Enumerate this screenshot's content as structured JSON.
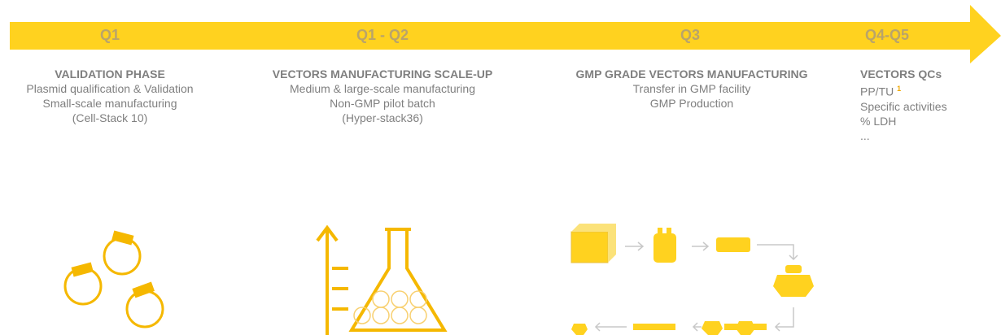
{
  "phases": [
    {
      "quarter": "Q1",
      "title": "VALIDATION PHASE",
      "items": [
        "Plasmid qualification & Validation",
        "Small-scale manufacturing",
        "(Cell-Stack 10)"
      ]
    },
    {
      "quarter": "Q1 - Q2",
      "title": "VECTORS MANUFACTURING SCALE-UP",
      "items": [
        "Medium & large-scale manufacturing",
        "Non-GMP pilot batch",
        "(Hyper-stack36)"
      ]
    },
    {
      "quarter": "Q3",
      "title": "GMP GRADE VECTORS MANUFACTURING",
      "items": [
        "Transfer in GMP facility",
        "GMP Production"
      ]
    },
    {
      "quarter": "Q4-Q5",
      "title": "VECTORS QCs",
      "items": [
        {
          "text": "PP/TU",
          "sup": "1"
        },
        "Specific activities",
        "% LDH",
        "..."
      ]
    }
  ]
}
